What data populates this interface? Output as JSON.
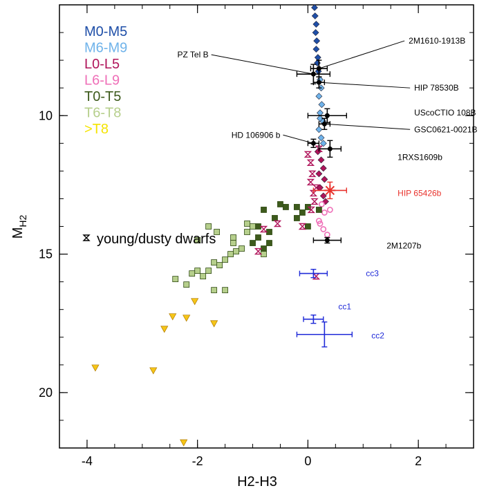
{
  "chart_data": {
    "type": "scatter",
    "xlabel": "H2-H3",
    "ylabel_main": "M",
    "ylabel_sub": "H2",
    "xlim": [
      -4.5,
      3.0
    ],
    "ylim": [
      22.0,
      6.0
    ],
    "y_inverted": true,
    "xticks": [
      -4,
      -2,
      0,
      2
    ],
    "xtick_labels": [
      "-4",
      "-2",
      "0",
      "2"
    ],
    "yticks": [
      10,
      15,
      20
    ],
    "ytick_labels": [
      "10",
      "15",
      "20"
    ],
    "legend": {
      "placement": "top-left",
      "entries": [
        {
          "label": "M0-M5",
          "color": "#1f4fa8"
        },
        {
          "label": "M6-M9",
          "color": "#6fb3ea"
        },
        {
          "label": "L0-L5",
          "color": "#b0145a"
        },
        {
          "label": "L6-L9",
          "color": "#ef6fb8"
        },
        {
          "label": "T0-T5",
          "color": "#3d5a1c"
        },
        {
          "label": "T6-T8",
          "color": "#b6cf8c"
        },
        {
          "label": ">T8",
          "color": "#f5e400"
        }
      ]
    },
    "young_label": "young/dusty dwarfs",
    "series": [
      {
        "key": "M0-M5",
        "marker": "diamond",
        "color": "#1f4fa8",
        "points": [
          [
            0.12,
            6.1
          ],
          [
            0.13,
            6.4
          ],
          [
            0.15,
            6.7
          ],
          [
            0.14,
            7.0
          ],
          [
            0.16,
            7.3
          ],
          [
            0.15,
            7.6
          ],
          [
            0.18,
            7.9
          ],
          [
            0.17,
            8.1
          ],
          [
            0.19,
            8.4
          ]
        ]
      },
      {
        "key": "M6-M9",
        "marker": "diamond",
        "color": "#6fb3ea",
        "points": [
          [
            0.22,
            8.7
          ],
          [
            0.24,
            9.0
          ],
          [
            0.2,
            9.3
          ],
          [
            0.25,
            9.6
          ],
          [
            0.22,
            9.9
          ],
          [
            0.27,
            10.2
          ],
          [
            0.2,
            10.5
          ],
          [
            0.24,
            10.8
          ],
          [
            0.28,
            11.0
          ],
          [
            0.22,
            10.1
          ]
        ]
      },
      {
        "key": "L0-L5",
        "marker": "diamond",
        "color": "#b0145a",
        "points": [
          [
            0.18,
            11.3
          ],
          [
            0.24,
            11.6
          ],
          [
            0.28,
            11.9
          ],
          [
            0.2,
            12.1
          ],
          [
            0.3,
            12.3
          ],
          [
            0.22,
            12.6
          ],
          [
            0.28,
            12.9
          ],
          [
            0.32,
            13.1
          ]
        ]
      },
      {
        "key": "L6-L9",
        "marker": "circle",
        "color": "#ef6fb8",
        "points": [
          [
            0.25,
            13.2
          ],
          [
            0.3,
            13.5
          ],
          [
            0.2,
            13.8
          ],
          [
            0.28,
            14.1
          ],
          [
            0.35,
            14.3
          ],
          [
            0.22,
            13.9
          ],
          [
            0.4,
            13.4
          ]
        ]
      },
      {
        "key": "T0-T5",
        "marker": "square",
        "color": "#3d5a1c",
        "points": [
          [
            -0.2,
            13.3
          ],
          [
            -0.4,
            13.3
          ],
          [
            -0.5,
            13.2
          ],
          [
            -0.1,
            13.5
          ],
          [
            -0.2,
            13.7
          ],
          [
            -0.6,
            13.7
          ],
          [
            -0.8,
            13.4
          ],
          [
            -0.9,
            14.0
          ],
          [
            -0.7,
            14.2
          ],
          [
            -0.9,
            14.4
          ],
          [
            -1.0,
            14.6
          ],
          [
            -0.7,
            14.6
          ],
          [
            -0.8,
            14.8
          ],
          [
            0.0,
            13.3
          ],
          [
            0.0,
            14.0
          ],
          [
            0.2,
            13.4
          ]
        ]
      },
      {
        "key": "T6-T8",
        "marker": "square",
        "color": "#b6cf8c",
        "points": [
          [
            -1.0,
            14.0
          ],
          [
            -1.1,
            14.2
          ],
          [
            -1.2,
            14.8
          ],
          [
            -1.3,
            14.9
          ],
          [
            -1.4,
            15.0
          ],
          [
            -1.5,
            15.2
          ],
          [
            -1.6,
            15.4
          ],
          [
            -1.7,
            15.3
          ],
          [
            -1.8,
            15.6
          ],
          [
            -1.9,
            15.8
          ],
          [
            -2.0,
            15.6
          ],
          [
            -2.1,
            15.7
          ],
          [
            -2.2,
            16.1
          ],
          [
            -2.4,
            15.9
          ],
          [
            -1.5,
            16.3
          ],
          [
            -1.7,
            16.3
          ],
          [
            -1.35,
            14.6
          ],
          [
            -1.65,
            14.2
          ],
          [
            -1.35,
            14.4
          ],
          [
            -1.8,
            14.0
          ],
          [
            -2.0,
            14.5
          ],
          [
            -1.1,
            13.9
          ],
          [
            -0.8,
            15.0
          ]
        ]
      },
      {
        "key": ">T8",
        "marker": "triangle",
        "color": "#f5c518",
        "points": [
          [
            -3.85,
            19.1
          ],
          [
            -2.8,
            19.2
          ],
          [
            -2.6,
            17.7
          ],
          [
            -2.45,
            17.25
          ],
          [
            -2.2,
            17.3
          ],
          [
            -2.05,
            16.7
          ],
          [
            -1.7,
            17.5
          ],
          [
            -2.25,
            21.8
          ]
        ]
      }
    ],
    "young_dwarfs": [
      [
        0.0,
        11.4
      ],
      [
        0.05,
        11.7
      ],
      [
        0.08,
        12.1
      ],
      [
        0.05,
        12.4
      ],
      [
        0.1,
        12.8
      ],
      [
        0.12,
        13.1
      ],
      [
        0.06,
        13.4
      ],
      [
        0.15,
        12.6
      ],
      [
        -0.1,
        14.0
      ],
      [
        -0.55,
        13.9
      ],
      [
        -0.8,
        14.1
      ],
      [
        -0.9,
        14.9
      ],
      [
        0.15,
        15.8
      ],
      [
        0.2,
        11.2
      ]
    ],
    "companions": [
      {
        "name": "PZ Tel B",
        "x": 0.1,
        "y": 8.5,
        "xerr": 0.3,
        "yerr": 0.35,
        "label_x": -1.8,
        "label_y": 7.8,
        "color": "#000000"
      },
      {
        "name": "2M1610-1913B",
        "x": 0.2,
        "y": 8.3,
        "xerr": 0.15,
        "yerr": 0.3,
        "label_x": 1.8,
        "label_y": 7.3,
        "color": "#000000"
      },
      {
        "name": "HIP 78530B",
        "x": 0.2,
        "y": 8.8,
        "xerr": 0.1,
        "yerr": 0.2,
        "label_x": 1.9,
        "label_y": 9.0,
        "color": "#000000"
      },
      {
        "name": "UScoCTIO 108B",
        "x": 0.35,
        "y": 10.0,
        "xerr": 0.35,
        "yerr": 0.25,
        "label_x": 1.9,
        "label_y": 9.9,
        "color": "#000000"
      },
      {
        "name": "GSC0621-0021B",
        "x": 0.3,
        "y": 10.3,
        "xerr": 0.1,
        "yerr": 0.2,
        "label_x": 1.9,
        "label_y": 10.5,
        "color": "#000000"
      },
      {
        "name": "HD 106906 b",
        "x": 0.1,
        "y": 11.0,
        "xerr": 0.1,
        "yerr": 0.15,
        "label_x": -0.5,
        "label_y": 10.7,
        "color": "#000000"
      },
      {
        "name": "1RXS1609b",
        "x": 0.4,
        "y": 11.2,
        "xerr": 0.2,
        "yerr": 0.3,
        "label_x": 1.6,
        "label_y": 11.5,
        "color": "#000000"
      },
      {
        "name": "HIP 65426b",
        "x": 0.4,
        "y": 12.7,
        "xerr": 0.3,
        "yerr": 0.3,
        "label_x": 1.6,
        "label_y": 12.8,
        "color": "#e8302a"
      },
      {
        "name": "2M1207b",
        "x": 0.35,
        "y": 14.5,
        "xerr": 0.25,
        "yerr": 0.1,
        "label_x": 1.4,
        "label_y": 14.7,
        "color": "#000000"
      }
    ],
    "candidates": [
      {
        "name": "cc3",
        "x": 0.1,
        "y": 15.7,
        "xerr": 0.25,
        "yerr": 0.15,
        "label_x": 1.05,
        "label_y": 15.7
      },
      {
        "name": "cc1",
        "x": 0.1,
        "y": 17.35,
        "xerr": 0.18,
        "yerr": 0.15,
        "label_x": 0.55,
        "label_y": 16.9
      },
      {
        "name": "cc2",
        "x": 0.3,
        "y": 17.9,
        "xerr": 0.5,
        "yerr": 0.45,
        "label_x": 1.15,
        "label_y": 17.95
      }
    ],
    "candidate_color": "#1f2ad8",
    "grid": false
  }
}
